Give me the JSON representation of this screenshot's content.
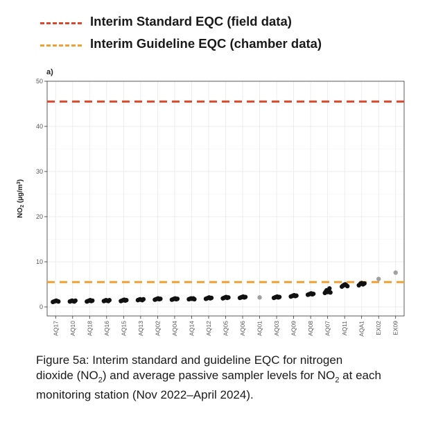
{
  "legend": {
    "items": [
      {
        "label": "Interim Standard EQC (field data)",
        "color": "#d9482b"
      },
      {
        "label": "Interim Guideline EQC (chamber data)",
        "color": "#f0a033"
      }
    ]
  },
  "chart_data": {
    "type": "scatter",
    "panel_label": "a)",
    "ylabel": "NO2 (µg/m3)",
    "ylabel_main": "NO",
    "ylabel_sub": "2",
    "ylabel_rest": " (µg/m",
    "ylabel_sup": "3",
    "ylabel_close": ")",
    "ylim": [
      -2,
      50
    ],
    "yticks": [
      0,
      10,
      20,
      30,
      40,
      50
    ],
    "grid": true,
    "categories": [
      "AQ17",
      "AQ10",
      "AQ18",
      "AQ16",
      "AQ15",
      "AQ13",
      "AQ02",
      "AQ04",
      "AQ14",
      "AQ12",
      "AQ05",
      "AQ06",
      "AQ01",
      "AQ03",
      "AQ09",
      "AQ08",
      "AQ07",
      "AQ11",
      "AQA1",
      "EX02",
      "EX09"
    ],
    "points": [
      {
        "category": "AQ17",
        "values": [
          1.1,
          1.2,
          1.3,
          1.4,
          1.3,
          1.2
        ],
        "color": "#111111"
      },
      {
        "category": "AQ10",
        "values": [
          1.2,
          1.3,
          1.4,
          1.3,
          1.2,
          1.4
        ],
        "color": "#111111"
      },
      {
        "category": "AQ18",
        "values": [
          1.2,
          1.3,
          1.4,
          1.5,
          1.3,
          1.4
        ],
        "color": "#111111"
      },
      {
        "category": "AQ16",
        "values": [
          1.3,
          1.4,
          1.5,
          1.4,
          1.3,
          1.5
        ],
        "color": "#111111"
      },
      {
        "category": "AQ15",
        "values": [
          1.3,
          1.4,
          1.5,
          1.6,
          1.4,
          1.5
        ],
        "color": "#111111"
      },
      {
        "category": "AQ13",
        "values": [
          1.5,
          1.6,
          1.7,
          1.6,
          1.5,
          1.7
        ],
        "color": "#111111"
      },
      {
        "category": "AQ02",
        "values": [
          1.6,
          1.7,
          1.8,
          1.9,
          1.7,
          1.8
        ],
        "color": "#111111"
      },
      {
        "category": "AQ04",
        "values": [
          1.6,
          1.7,
          1.8,
          1.9,
          1.7,
          1.8
        ],
        "color": "#111111"
      },
      {
        "category": "AQ14",
        "values": [
          1.7,
          1.8,
          1.9,
          1.8,
          1.9,
          1.7
        ],
        "color": "#111111"
      },
      {
        "category": "AQ12",
        "values": [
          1.8,
          1.9,
          2.0,
          2.1,
          1.9,
          2.0
        ],
        "color": "#111111"
      },
      {
        "category": "AQ05",
        "values": [
          1.9,
          2.0,
          2.1,
          2.2,
          2.0,
          2.1
        ],
        "color": "#111111"
      },
      {
        "category": "AQ06",
        "values": [
          2.0,
          2.1,
          2.2,
          2.3,
          2.1,
          2.2
        ],
        "color": "#111111"
      },
      {
        "category": "AQ01",
        "values": [
          2.1
        ],
        "color": "#a0a0a0"
      },
      {
        "category": "AQ03",
        "values": [
          2.0,
          2.1,
          2.2,
          2.3,
          2.1,
          2.2
        ],
        "color": "#111111"
      },
      {
        "category": "AQ09",
        "values": [
          2.3,
          2.4,
          2.5,
          2.6,
          2.4,
          2.5
        ],
        "color": "#111111"
      },
      {
        "category": "AQ08",
        "values": [
          2.7,
          2.8,
          2.9,
          3.0,
          2.8,
          2.9
        ],
        "color": "#111111"
      },
      {
        "category": "AQ07",
        "values": [
          3.1,
          3.4,
          3.7,
          3.3,
          3.6,
          4.1,
          3.2
        ],
        "color": "#111111"
      },
      {
        "category": "AQ11",
        "values": [
          4.5,
          4.7,
          4.9,
          5.0,
          4.8,
          4.6
        ],
        "color": "#111111"
      },
      {
        "category": "AQA1",
        "values": [
          4.8,
          5.1,
          5.3,
          5.0,
          5.2
        ],
        "color": "#111111"
      },
      {
        "category": "EX02",
        "values": [
          6.2
        ],
        "color": "#a0a0a0"
      },
      {
        "category": "EX09",
        "values": [
          7.6
        ],
        "color": "#a0a0a0"
      }
    ],
    "reference_lines": [
      {
        "name": "Interim Standard EQC (field data)",
        "value": 45.5,
        "color": "#d9482b"
      },
      {
        "name": "Interim Guideline EQC (chamber data)",
        "value": 5.5,
        "color": "#f0a033"
      }
    ]
  },
  "caption": {
    "part1": "Figure 5a: Interim standard and guideline EQC for nitrogen dioxide (NO",
    "sub1": "2",
    "part2": ") and average passive sampler levels for NO",
    "sub2": "2",
    "part3": " at each monitoring station (Nov 2022–April 2024)."
  }
}
